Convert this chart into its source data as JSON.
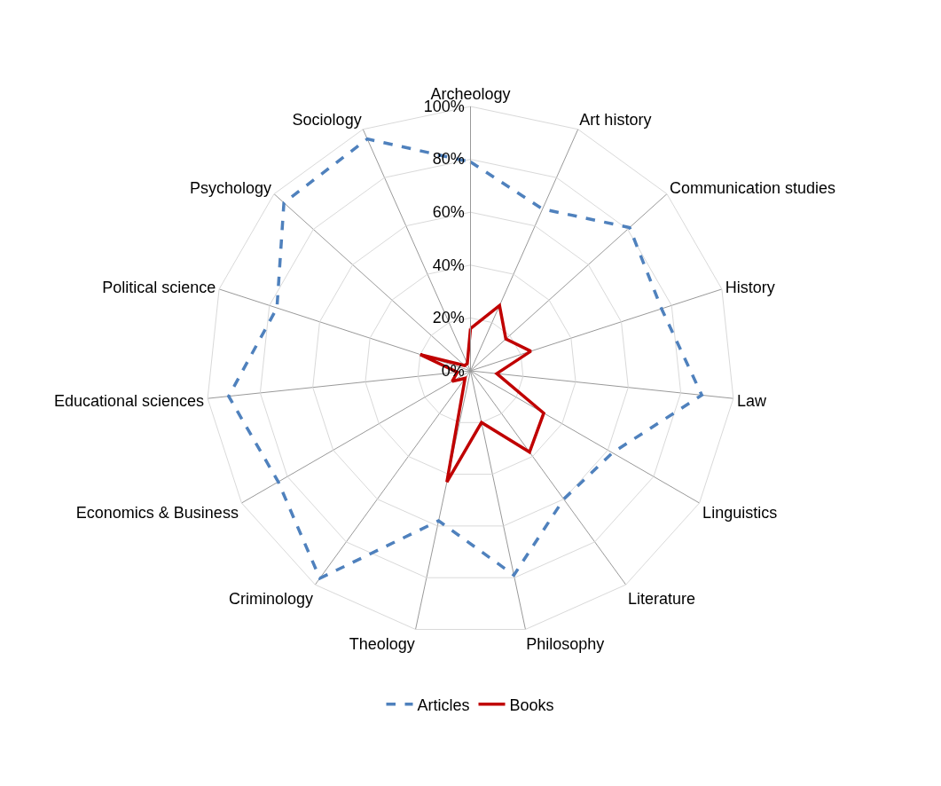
{
  "chart_data": {
    "type": "radar",
    "categories": [
      "Archeology",
      "Art history",
      "Communication studies",
      "History",
      "Law",
      "Linguistics",
      "Literature",
      "Philosophy",
      "Theology",
      "Criminology",
      "Economics & Business",
      "Educational sciences",
      "Political science",
      "Psychology",
      "Sociology"
    ],
    "series": [
      {
        "name": "Articles",
        "color": "#4f81bd",
        "line_style": "dashed",
        "values": [
          79,
          67,
          81,
          76,
          88,
          62,
          60,
          79,
          58,
          97,
          84,
          92,
          77,
          95,
          96
        ]
      },
      {
        "name": "Books",
        "color": "#c00000",
        "line_style": "solid",
        "values": [
          16,
          27,
          18,
          24,
          10,
          32,
          38,
          20,
          43,
          3.5,
          8,
          5,
          20,
          3,
          3
        ]
      }
    ],
    "ylim": [
      0,
      100
    ],
    "yticks": [
      {
        "value": 0,
        "label": "0%"
      },
      {
        "value": 20,
        "label": "20%"
      },
      {
        "value": 40,
        "label": "40%"
      },
      {
        "value": 60,
        "label": "60%"
      },
      {
        "value": 80,
        "label": "80%"
      },
      {
        "value": 100,
        "label": "100%"
      }
    ],
    "grid": true,
    "legend": "bottom",
    "marker": "none"
  }
}
